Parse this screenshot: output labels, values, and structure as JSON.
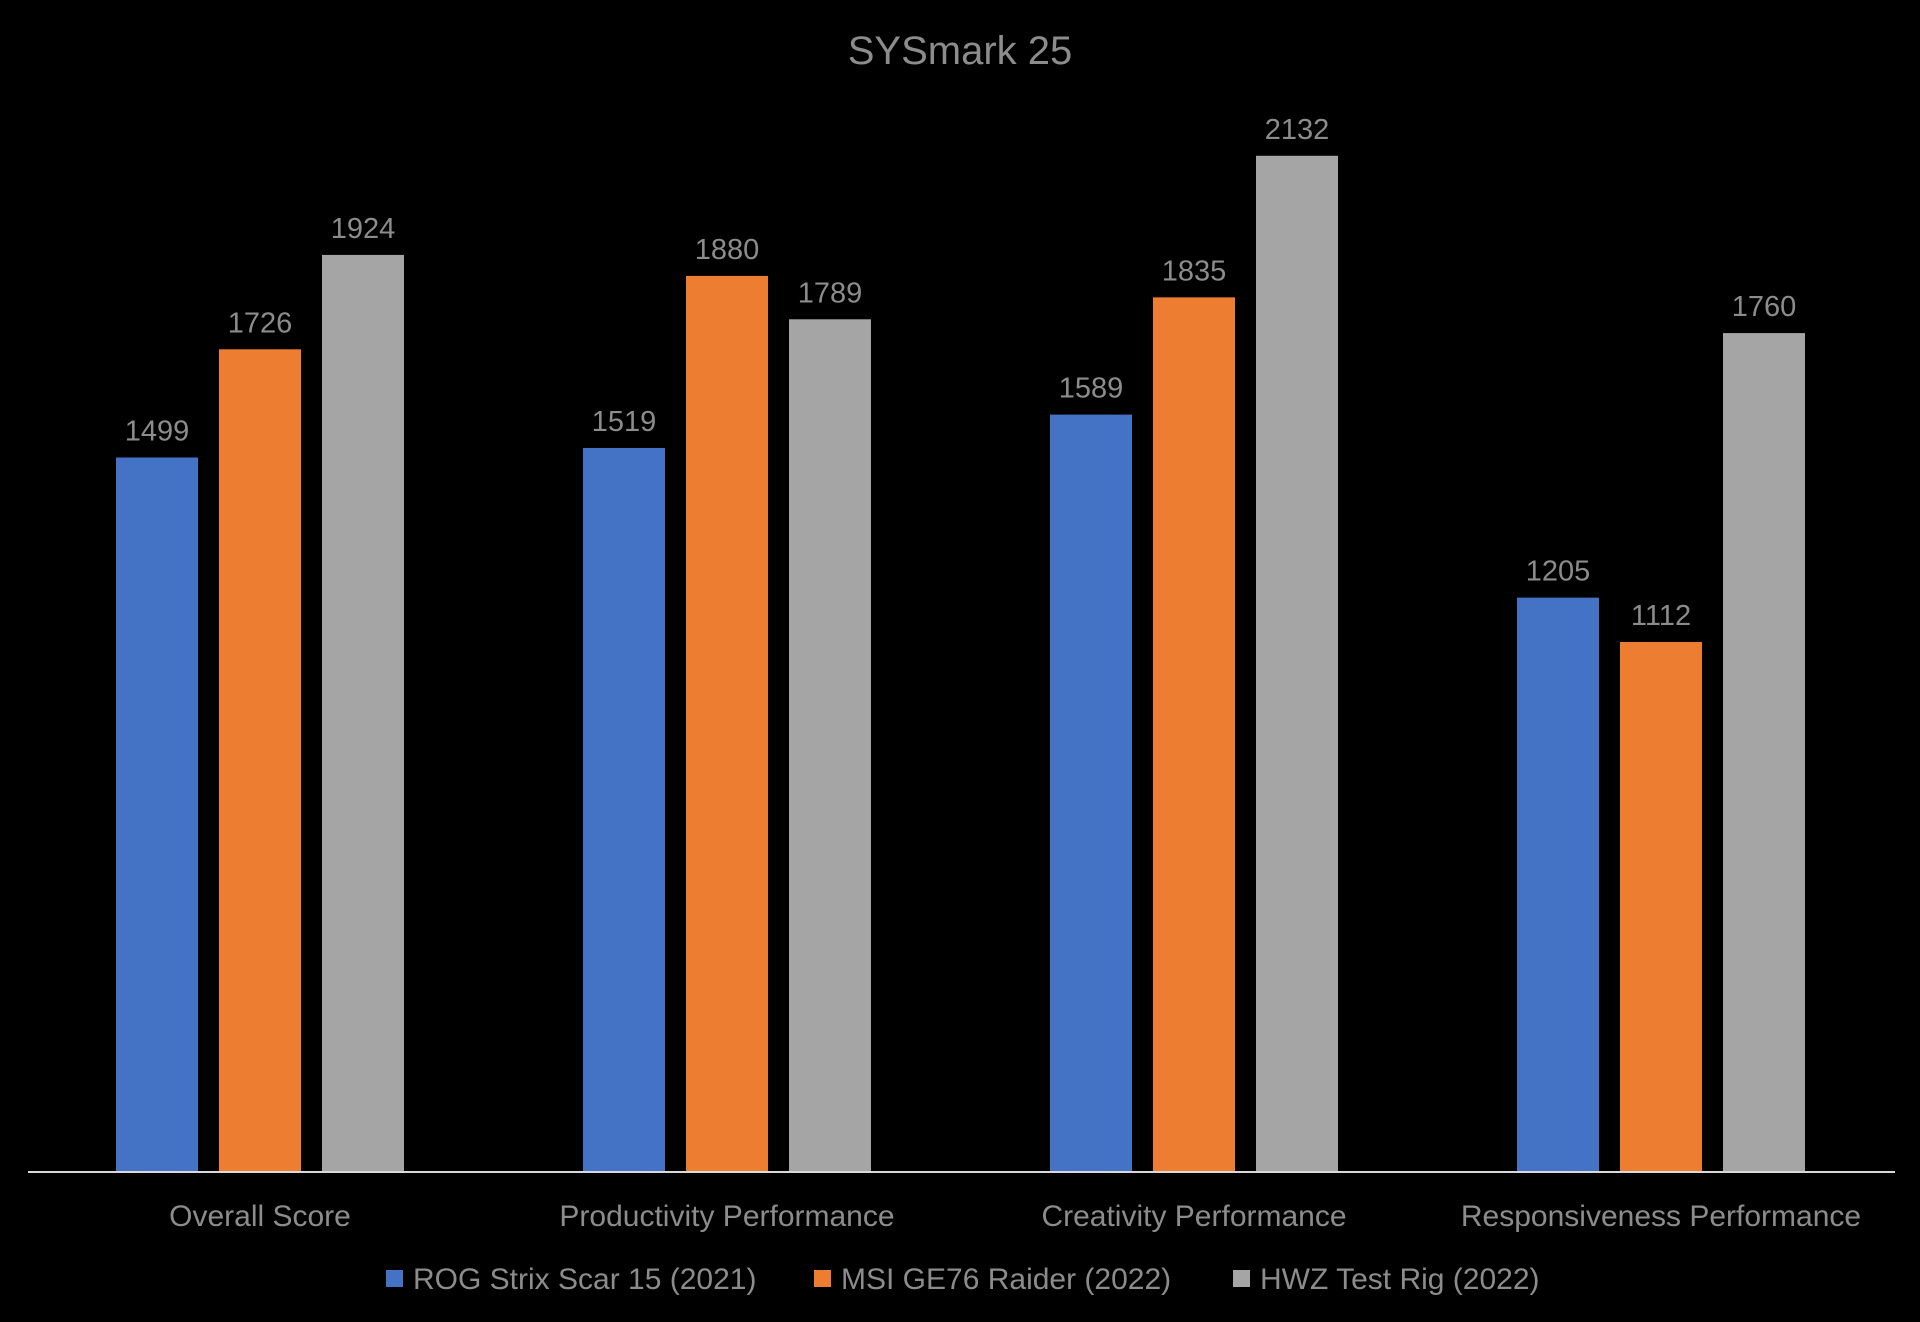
{
  "chart_data": {
    "type": "bar",
    "title": "SYSmark 25",
    "xlabel": "",
    "ylabel": "",
    "categories": [
      "Overall Score",
      "Productivity Performance",
      "Creativity Performance",
      "Responsiveness Performance"
    ],
    "series": [
      {
        "name": "ROG Strix Scar 15 (2021)",
        "color": "#4472c4",
        "values": [
          1499,
          1519,
          1589,
          1205
        ]
      },
      {
        "name": "MSI GE76 Raider (2022)",
        "color": "#ed7d31",
        "values": [
          1726,
          1880,
          1835,
          1112
        ]
      },
      {
        "name": "HWZ Test Rig (2022)",
        "color": "#a5a5a5",
        "values": [
          1924,
          1789,
          2132,
          1760
        ]
      }
    ],
    "ylim": [
      0,
      2270
    ],
    "grid": false,
    "legend": "bottom",
    "data_labels": true
  },
  "colors": {
    "background": "#000000",
    "text": "#8c8c8c",
    "axis": "#d9d9d9"
  }
}
